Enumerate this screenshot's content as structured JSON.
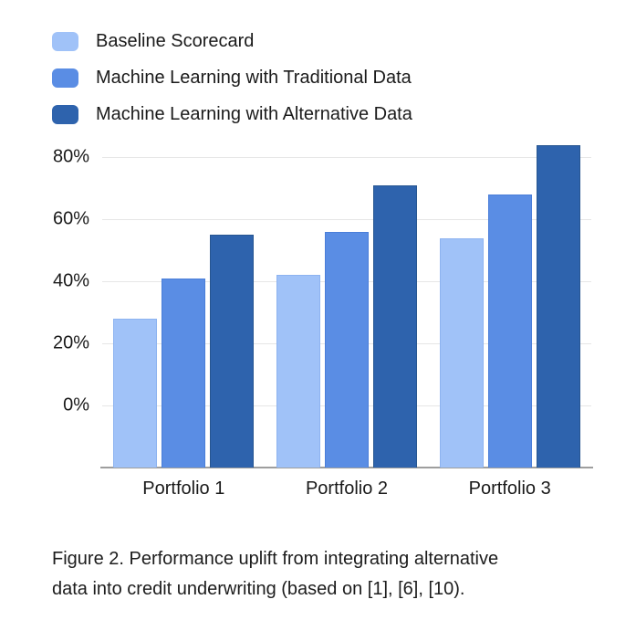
{
  "chart_data": {
    "type": "bar",
    "title": "",
    "xlabel": "",
    "ylabel": "",
    "categories": [
      "Portfolio 1",
      "Portfolio 2",
      "Portfolio 3"
    ],
    "series": [
      {
        "name": "Baseline Scorecard",
        "values": [
          28,
          42,
          54
        ],
        "color": "#a0c2f8",
        "border_color": "#8db3f0"
      },
      {
        "name": "Machine Learning with Traditional Data",
        "values": [
          41,
          56,
          68
        ],
        "color": "#5a8de4",
        "border_color": "#4a7ed9"
      },
      {
        "name": "Machine Learning with Alternative Data",
        "values": [
          55,
          71,
          84
        ],
        "color": "#2e63ad",
        "border_color": "#275691"
      }
    ],
    "y_ticks": [
      {
        "value": 0,
        "label": "0%"
      },
      {
        "value": 20,
        "label": "20%"
      },
      {
        "value": 40,
        "label": "40%"
      },
      {
        "value": 60,
        "label": "60%"
      },
      {
        "value": 80,
        "label": "80%"
      }
    ],
    "ylim": [
      -20,
      88
    ],
    "grid": true,
    "legend_position": "top-left",
    "gridline_color": "#e6e6e6",
    "axis_line_color": "#9e9e9e",
    "text_color": "#1a1a1a"
  },
  "caption": {
    "line1": "Figure 2. Performance uplift from integrating alternative",
    "line2": "data into credit underwriting (based on [1], [6], [10)."
  }
}
